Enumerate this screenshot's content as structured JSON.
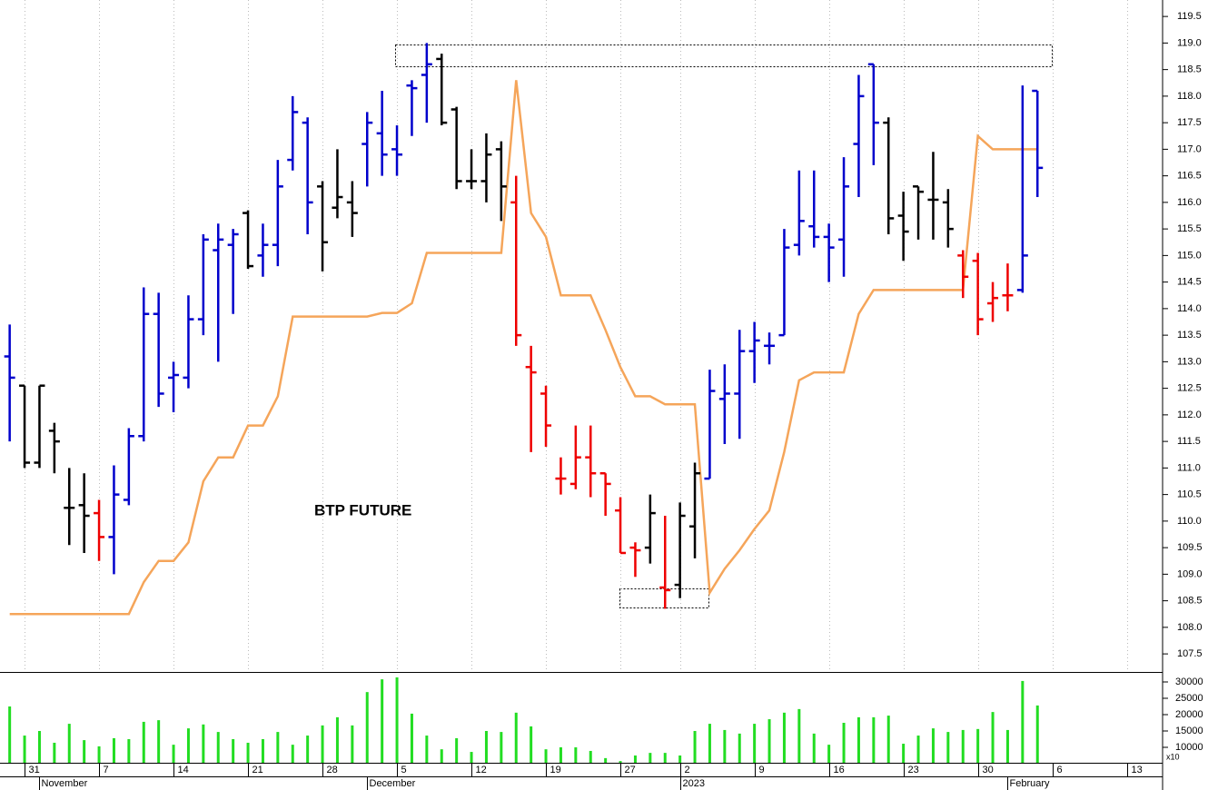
{
  "chart_data": [
    {
      "type": "ohlc",
      "annotation": "BTP FUTURE",
      "x": [
        0,
        1,
        2,
        3,
        4,
        5,
        6,
        7,
        8,
        9,
        10,
        11,
        12,
        13,
        14,
        15,
        16,
        17,
        18,
        19,
        20,
        21,
        22,
        23,
        24,
        25,
        26,
        27,
        28,
        29,
        30,
        31,
        32,
        33,
        34,
        35,
        36,
        37,
        38,
        39,
        40,
        41,
        42,
        43,
        44,
        45,
        46,
        47,
        48,
        49,
        50,
        51,
        52,
        53,
        54,
        55,
        56,
        57,
        58,
        59,
        60,
        61,
        62,
        63,
        64,
        65,
        66,
        67,
        68,
        69
      ],
      "open": [
        113.1,
        112.55,
        111.1,
        111.7,
        110.25,
        110.3,
        110.15,
        109.7,
        110.4,
        111.6,
        113.9,
        112.7,
        112.7,
        113.8,
        115.1,
        115.2,
        115.8,
        115.0,
        115.2,
        116.8,
        117.5,
        116.3,
        115.9,
        116.0,
        117.1,
        117.3,
        117.0,
        118.2,
        118.4,
        118.7,
        117.75,
        116.4,
        116.4,
        117.0,
        116.0,
        112.9,
        112.4,
        110.8,
        110.7,
        111.2,
        110.9,
        110.2,
        109.5,
        109.5,
        108.75,
        108.8,
        109.9,
        110.8,
        112.3,
        112.4,
        113.2,
        113.3,
        113.5,
        115.2,
        115.55,
        115.35,
        115.3,
        117.1,
        118.6,
        117.5,
        115.75,
        116.3,
        116.05,
        116.0,
        115.0,
        114.9,
        114.1,
        114.25,
        114.35,
        118.1
      ],
      "high": [
        113.7,
        112.55,
        112.55,
        111.85,
        111.0,
        110.9,
        110.4,
        111.05,
        111.75,
        114.4,
        114.3,
        113.0,
        114.25,
        115.4,
        115.6,
        115.5,
        115.85,
        115.6,
        116.8,
        118.0,
        117.6,
        116.4,
        117.0,
        116.4,
        117.7,
        118.1,
        117.45,
        118.3,
        119.0,
        118.8,
        117.8,
        117.0,
        117.3,
        117.15,
        116.5,
        113.3,
        112.55,
        111.2,
        111.8,
        111.8,
        110.9,
        110.45,
        109.6,
        110.5,
        110.1,
        110.35,
        111.1,
        112.85,
        112.95,
        113.6,
        113.75,
        113.55,
        115.5,
        116.6,
        116.6,
        115.6,
        116.85,
        118.4,
        118.6,
        117.6,
        116.2,
        116.3,
        116.95,
        116.25,
        115.1,
        115.05,
        114.5,
        114.85,
        118.2,
        118.1
      ],
      "low": [
        111.5,
        111.0,
        111.0,
        110.9,
        109.55,
        109.4,
        109.25,
        109.0,
        110.3,
        111.5,
        112.15,
        112.05,
        112.5,
        113.5,
        113.0,
        113.9,
        114.75,
        114.6,
        114.8,
        116.6,
        115.4,
        114.7,
        115.7,
        115.35,
        116.3,
        116.5,
        116.5,
        117.25,
        117.5,
        117.45,
        116.25,
        116.25,
        116.0,
        115.65,
        113.3,
        111.3,
        111.4,
        110.5,
        110.6,
        110.45,
        110.1,
        109.4,
        108.95,
        109.2,
        108.35,
        108.55,
        109.3,
        110.8,
        111.45,
        111.55,
        112.6,
        112.95,
        113.5,
        115.0,
        115.15,
        114.5,
        114.6,
        116.1,
        116.7,
        115.4,
        114.9,
        115.3,
        115.3,
        115.15,
        114.2,
        113.5,
        113.75,
        113.95,
        114.3,
        116.1
      ],
      "close": [
        112.7,
        111.1,
        112.55,
        111.5,
        110.25,
        110.1,
        109.7,
        110.5,
        111.6,
        113.9,
        112.4,
        112.75,
        113.8,
        115.3,
        115.3,
        115.4,
        114.8,
        115.2,
        116.3,
        117.7,
        116.0,
        115.25,
        116.1,
        115.8,
        117.5,
        116.9,
        116.9,
        118.15,
        118.6,
        117.5,
        116.4,
        116.4,
        116.9,
        116.3,
        113.5,
        112.8,
        111.8,
        110.8,
        111.2,
        110.9,
        110.7,
        109.4,
        109.45,
        110.15,
        108.7,
        110.1,
        110.9,
        112.45,
        112.4,
        113.2,
        113.4,
        113.3,
        115.15,
        115.65,
        115.35,
        115.15,
        116.3,
        118.0,
        117.5,
        115.7,
        115.45,
        116.2,
        116.05,
        115.5,
        114.6,
        113.8,
        114.2,
        114.25,
        115.0,
        116.65
      ],
      "colors": [
        "#0000cc",
        "#000000",
        "#000000",
        "#000000",
        "#000000",
        "#000000",
        "#ee0000",
        "#0000cc",
        "#0000cc",
        "#0000cc",
        "#0000cc",
        "#0000cc",
        "#0000cc",
        "#0000cc",
        "#0000cc",
        "#0000cc",
        "#000000",
        "#0000cc",
        "#0000cc",
        "#0000cc",
        "#0000cc",
        "#000000",
        "#000000",
        "#000000",
        "#0000cc",
        "#0000cc",
        "#0000cc",
        "#0000cc",
        "#0000cc",
        "#000000",
        "#000000",
        "#000000",
        "#000000",
        "#000000",
        "#ee0000",
        "#ee0000",
        "#ee0000",
        "#ee0000",
        "#ee0000",
        "#ee0000",
        "#ee0000",
        "#ee0000",
        "#ee0000",
        "#000000",
        "#ee0000",
        "#000000",
        "#000000",
        "#0000cc",
        "#0000cc",
        "#0000cc",
        "#0000cc",
        "#0000cc",
        "#0000cc",
        "#0000cc",
        "#0000cc",
        "#0000cc",
        "#0000cc",
        "#0000cc",
        "#0000cc",
        "#000000",
        "#000000",
        "#000000",
        "#000000",
        "#000000",
        "#ee0000",
        "#ee0000",
        "#ee0000",
        "#ee0000",
        "#0000cc",
        "#0000cc"
      ],
      "line": {
        "color": "#f5a55a",
        "values": [
          108.25,
          108.25,
          108.25,
          108.25,
          108.25,
          108.25,
          108.25,
          108.25,
          108.25,
          108.85,
          109.25,
          109.25,
          109.6,
          110.75,
          111.2,
          111.2,
          111.8,
          111.8,
          112.35,
          113.85,
          113.85,
          113.85,
          113.85,
          113.85,
          113.85,
          113.92,
          113.92,
          114.1,
          115.05,
          115.05,
          115.05,
          115.05,
          115.05,
          115.05,
          118.3,
          115.8,
          115.35,
          114.25,
          114.25,
          114.25,
          113.6,
          112.9,
          112.35,
          112.35,
          112.2,
          112.2,
          112.2,
          108.65,
          109.1,
          109.45,
          109.85,
          110.2,
          111.3,
          112.65,
          112.8,
          112.8,
          112.8,
          113.9,
          114.35,
          114.35,
          114.35,
          114.35,
          114.35,
          114.35,
          114.35,
          117.25,
          117.0,
          117.0,
          117.0,
          117.0
        ]
      },
      "xlim": [
        -0.65,
        77.4
      ],
      "ylim": [
        107.16,
        119.81
      ],
      "yticks": [
        {
          "value": 107.5,
          "label": "107.5"
        },
        {
          "value": 108,
          "label": "108.0"
        },
        108.5,
        {
          "value": 109,
          "label": "109.0"
        },
        109.5,
        {
          "value": 110,
          "label": "110.0"
        },
        110.5,
        {
          "value": 111,
          "label": "111.0"
        },
        111.5,
        {
          "value": 112,
          "label": "112.0"
        },
        112.5,
        {
          "value": 113,
          "label": "113.0"
        },
        113.5,
        {
          "value": 114,
          "label": "114.0"
        },
        114.5,
        {
          "value": 115,
          "label": "115.0"
        },
        115.5,
        {
          "value": 116,
          "label": "116.0"
        },
        116.5,
        {
          "value": 117,
          "label": "117.0"
        },
        117.5,
        {
          "value": 118,
          "label": "118.0"
        },
        118.5,
        {
          "value": 119,
          "label": "119.0"
        },
        119.5
      ],
      "xticks": [
        {
          "value": 1,
          "label": "31"
        },
        {
          "value": 6,
          "label": "7"
        },
        {
          "value": 11,
          "label": "14"
        },
        {
          "value": 16,
          "label": "21"
        },
        {
          "value": 21,
          "label": "28"
        },
        {
          "value": 26,
          "label": "5"
        },
        {
          "value": 31,
          "label": "12"
        },
        {
          "value": 36,
          "label": "19"
        },
        {
          "value": 41,
          "label": "27"
        },
        {
          "value": 45,
          "label": "2"
        },
        {
          "value": 50,
          "label": "9"
        },
        {
          "value": 55,
          "label": "16"
        },
        {
          "value": 60,
          "label": "23"
        },
        {
          "value": 65,
          "label": "30"
        },
        {
          "value": 70,
          "label": "6"
        },
        {
          "value": 75,
          "label": "13"
        }
      ],
      "month_ticks": [
        {
          "value": 2,
          "label": "November"
        },
        {
          "value": 24,
          "label": "December"
        },
        {
          "value": 45,
          "label": "2023"
        },
        {
          "value": 67,
          "label": "February"
        }
      ],
      "grid": true
    },
    {
      "type": "bar",
      "scale_label": "x10",
      "color": "#22dd22",
      "x": [
        0,
        1,
        2,
        3,
        4,
        5,
        6,
        7,
        8,
        9,
        10,
        11,
        12,
        13,
        14,
        15,
        16,
        17,
        18,
        19,
        20,
        21,
        22,
        23,
        24,
        25,
        26,
        27,
        28,
        29,
        30,
        31,
        32,
        33,
        34,
        35,
        36,
        37,
        38,
        39,
        40,
        41,
        42,
        43,
        44,
        45,
        46,
        47,
        48,
        49,
        50,
        51,
        52,
        53,
        54,
        55,
        56,
        57,
        58,
        59,
        60,
        61,
        62,
        63,
        64,
        65,
        66,
        67,
        68,
        69
      ],
      "values": [
        22500,
        13600,
        15000,
        11400,
        17200,
        12200,
        10300,
        12800,
        12500,
        17800,
        18300,
        10800,
        15800,
        17000,
        14700,
        12500,
        11400,
        12500,
        14700,
        10800,
        13600,
        16700,
        19200,
        16700,
        26900,
        30800,
        31400,
        20300,
        13600,
        9400,
        12800,
        8600,
        15000,
        14700,
        20600,
        16400,
        9400,
        10000,
        10000,
        8900,
        6700,
        5800,
        7500,
        8300,
        8300,
        7500,
        15000,
        17200,
        15300,
        14200,
        17200,
        18600,
        20600,
        21700,
        14200,
        10800,
        17500,
        19200,
        19200,
        19700,
        11100,
        13600,
        15800,
        14700,
        15300,
        15600,
        20800,
        15300,
        30300,
        22800
      ],
      "xlim": [
        -0.65,
        77.4
      ],
      "ylim": [
        5280,
        32500
      ],
      "yticks": [
        10000,
        15000,
        20000,
        25000,
        30000
      ]
    }
  ]
}
